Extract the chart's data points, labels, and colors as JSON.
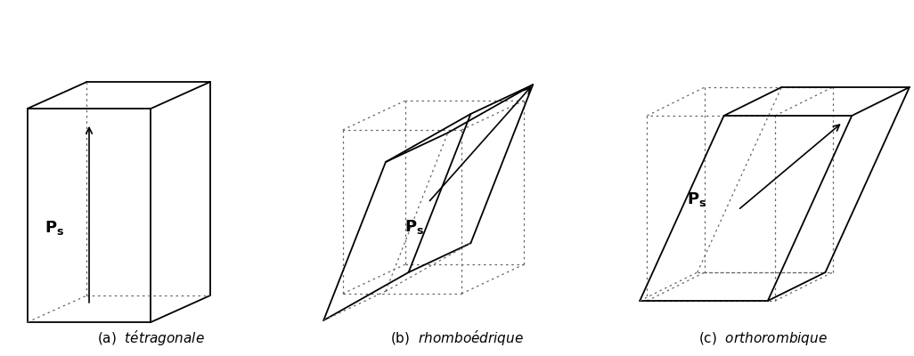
{
  "fig_width": 10.26,
  "fig_height": 4.0,
  "dpi": 100,
  "bg_color": "#ffffff",
  "line_color": "#000000",
  "dot_color": "#666666"
}
